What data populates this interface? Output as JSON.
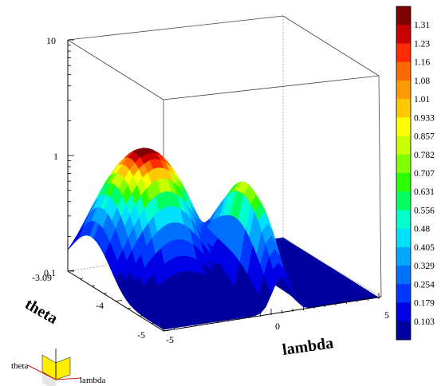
{
  "chart_data": {
    "type": "surface",
    "title": "",
    "x_axis": {
      "label": "lambda",
      "range": [
        -5,
        5
      ],
      "ticks": [
        "-5",
        "0",
        "5"
      ]
    },
    "y_axis": {
      "label": "theta",
      "range": [
        -5,
        -3.09
      ],
      "ticks": [
        "-3.09",
        "-4",
        "-5"
      ]
    },
    "z_axis": {
      "label": "",
      "scale": "log",
      "range": [
        0.1,
        10
      ],
      "ticks": [
        "0.1",
        "1",
        "10"
      ]
    },
    "colorbar": {
      "labels": [
        "1.31",
        "1.23",
        "1.16",
        "1.08",
        "1.01",
        "0.933",
        "0.857",
        "0.782",
        "0.707",
        "0.631",
        "0.556",
        "0.48",
        "0.405",
        "0.329",
        "0.254",
        "0.179",
        "0.103"
      ],
      "colors": [
        "#7f0000",
        "#c80000",
        "#ff2a00",
        "#ff6a00",
        "#ff9a00",
        "#ffc800",
        "#ffff00",
        "#c8ff00",
        "#7fff00",
        "#2eff00",
        "#00ff60",
        "#00ffcc",
        "#00e0ff",
        "#00a8ff",
        "#0070ff",
        "#0038ff",
        "#0000e6",
        "#0000a0"
      ]
    },
    "peaks": [
      {
        "lambda": -2.5,
        "theta": -3.6,
        "value": 1.31
      },
      {
        "lambda": 0.5,
        "theta": -4.3,
        "value": 0.86
      }
    ],
    "baseline_value": 0.103
  },
  "axes_legend": {
    "x_label": "lambda",
    "y_label": "theta"
  }
}
